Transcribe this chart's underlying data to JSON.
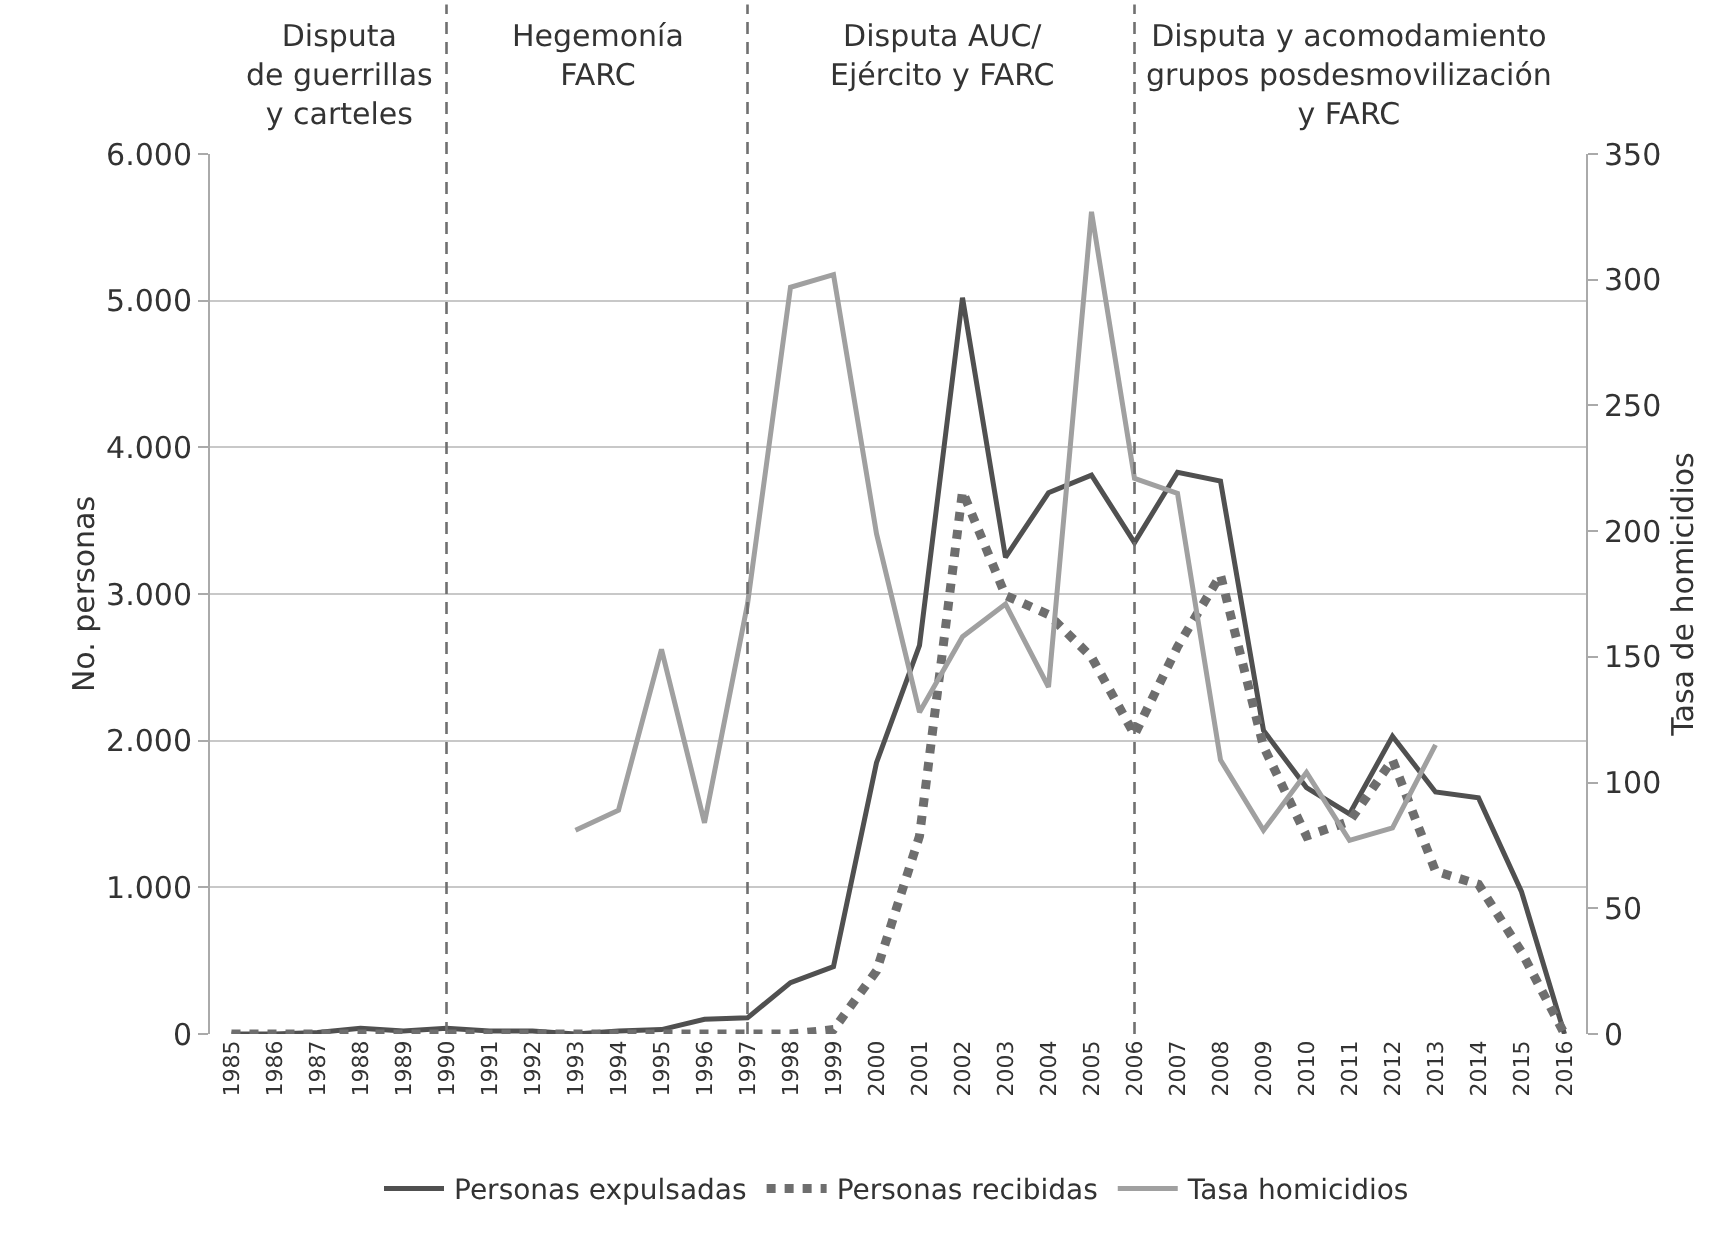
{
  "chart_data": {
    "type": "line",
    "xlabel": null,
    "ylabel": "No. personas",
    "y2label": "Tasa de homicidios",
    "categories": [
      "1985",
      "1986",
      "1987",
      "1988",
      "1989",
      "1990",
      "1991",
      "1992",
      "1993",
      "1994",
      "1995",
      "1996",
      "1997",
      "1998",
      "1999",
      "2000",
      "2001",
      "2002",
      "2003",
      "2004",
      "2005",
      "2006",
      "2007",
      "2008",
      "2009",
      "2010",
      "2011",
      "2012",
      "2013",
      "2014",
      "2015",
      "2016"
    ],
    "series": [
      {
        "name": "Personas expulsadas",
        "color": "#505050",
        "line_style": "solid",
        "values": [
          0,
          0,
          10,
          40,
          20,
          40,
          20,
          20,
          0,
          20,
          30,
          100,
          110,
          350,
          460,
          1850,
          2650,
          5020,
          3250,
          3690,
          3810,
          3350,
          3830,
          3770,
          2070,
          1680,
          1500,
          2030,
          1650,
          1610,
          970,
          0
        ]
      },
      {
        "name": "Personas recibidas",
        "color": "#6e6e6e",
        "line_style": "dotted",
        "values": [
          0,
          0,
          0,
          0,
          0,
          0,
          0,
          0,
          0,
          0,
          0,
          0,
          0,
          0,
          30,
          430,
          1350,
          3700,
          2990,
          2860,
          2570,
          2040,
          2640,
          3130,
          1960,
          1350,
          1450,
          1870,
          1110,
          1020,
          560,
          0
        ]
      },
      {
        "name": "Tasa homicidios",
        "color": "#a0a0a0",
        "line_style": "solid",
        "axis": "y2",
        "values": [
          null,
          null,
          null,
          null,
          null,
          null,
          null,
          null,
          81,
          89,
          153,
          84,
          171,
          297,
          302,
          199,
          128,
          158,
          171,
          138,
          327,
          221,
          215,
          109,
          81,
          104,
          77,
          82,
          115,
          null,
          null,
          null
        ]
      }
    ],
    "ylim": [
      0,
      6000
    ],
    "yticks": [
      {
        "value": 0,
        "label": "0"
      },
      {
        "value": 1000,
        "label": "1.000"
      },
      {
        "value": 2000,
        "label": "2.000"
      },
      {
        "value": 3000,
        "label": "3.000"
      },
      {
        "value": 4000,
        "label": "4.000"
      },
      {
        "value": 5000,
        "label": "5.000"
      },
      {
        "value": 6000,
        "label": "6.000"
      }
    ],
    "y2lim": [
      0,
      350
    ],
    "y2ticks": [
      0,
      50,
      100,
      150,
      200,
      250,
      300,
      350
    ],
    "ref_lines": [
      {
        "axis": "x",
        "value": "1990",
        "color": "#707070",
        "line_style": "dashed"
      },
      {
        "axis": "x",
        "value": "1997",
        "color": "#707070",
        "line_style": "dashed"
      },
      {
        "axis": "x",
        "value": "2006",
        "color": "#707070",
        "line_style": "dashed"
      }
    ],
    "annotations": [
      "Disputa\nde guerrillas\ny carteles",
      "Hegemonía\nFARC",
      "Disputa AUC/\nEjército y FARC",
      "Disputa y acomodamiento\ngrupos posdesmovilización\ny FARC"
    ],
    "grid": "y",
    "legend": "bottom",
    "marker": "none"
  }
}
